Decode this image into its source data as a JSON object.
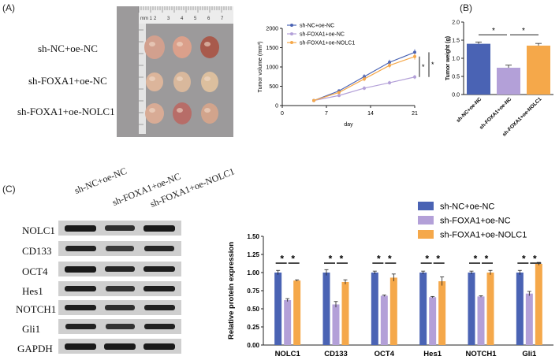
{
  "panels": {
    "a": "(A)",
    "b": "(B)",
    "c": "(C)"
  },
  "photo": {
    "ruler_ticks": [
      "mm 1",
      "2",
      "3",
      "4",
      "5",
      "6",
      "7"
    ],
    "row_labels": [
      "sh-NC+oe-NC",
      "sh-FOXA1+oe-NC",
      "sh-FOXA1+oe-NOLC1"
    ]
  },
  "colors": {
    "nc": "#4a63b4",
    "foxa1": "#b3a0d8",
    "nolc1": "#f5a84a"
  },
  "volume_chart": {
    "chart_data": {
      "type": "line",
      "x": [
        5,
        9,
        13,
        17,
        21
      ],
      "series": [
        {
          "name": "sh-NC+oe-NC",
          "values": [
            130,
            380,
            750,
            1120,
            1380
          ]
        },
        {
          "name": "sh-FOXA1+oe-NC",
          "values": [
            130,
            260,
            450,
            590,
            740
          ]
        },
        {
          "name": "sh-FOXA1+oe-NOLC1",
          "values": [
            130,
            340,
            690,
            1040,
            1270
          ]
        }
      ],
      "errors": [
        [
          20,
          40,
          60,
          70,
          80
        ],
        [
          15,
          30,
          50,
          50,
          55
        ],
        [
          20,
          40,
          60,
          70,
          80
        ]
      ],
      "xlabel": "day",
      "ylabel": "Tumor volume (mm³)",
      "xticks": [
        "0",
        "7",
        "14",
        "21"
      ],
      "yticks": [
        "0",
        "500",
        "1000",
        "1500",
        "2000"
      ],
      "xlim": [
        0,
        21
      ],
      "ylim": [
        0,
        2000
      ],
      "sig": [
        "*",
        "*"
      ]
    }
  },
  "weight_chart": {
    "chart_data": {
      "type": "bar",
      "categories": [
        "sh-NC+oe-NC",
        "sh-FOXA1+oe-NC",
        "sh-FOXA1+oe-NOLC1"
      ],
      "values": [
        1.4,
        0.74,
        1.35
      ],
      "errors": [
        0.05,
        0.07,
        0.06
      ],
      "ylabel": "Tumor weight (g)",
      "yticks": [
        "0.0",
        "0.5",
        "1.0",
        "1.5",
        "2.0"
      ],
      "ylim": [
        0,
        2.0
      ],
      "sig": [
        "*",
        "*"
      ]
    }
  },
  "western": {
    "lanes": [
      "sh-NC+oe-NC",
      "sh-FOXA1+oe-NC",
      "sh-FOXA1+oe-NOLC1"
    ],
    "proteins": [
      "NOLC1",
      "CD133",
      "OCT4",
      "Hes1",
      "NOTCH1",
      "Gli1",
      "GAPDH"
    ]
  },
  "expression_chart": {
    "chart_data": {
      "type": "bar",
      "categories": [
        "NOLC1",
        "CD133",
        "OCT4",
        "Hes1",
        "NOTCH1",
        "Gli1"
      ],
      "series": [
        {
          "name": "sh-NC+oe-NC",
          "values": [
            1.0,
            1.0,
            1.0,
            1.0,
            1.0,
            1.0
          ]
        },
        {
          "name": "sh-FOXA1+oe-NC",
          "values": [
            0.62,
            0.56,
            0.68,
            0.66,
            0.67,
            0.71
          ]
        },
        {
          "name": "sh-FOXA1+oe-NOLC1",
          "values": [
            0.89,
            0.87,
            0.93,
            0.88,
            1.0,
            1.12
          ]
        }
      ],
      "errors": [
        [
          0.03,
          0.04,
          0.02,
          0.02,
          0.02,
          0.03
        ],
        [
          0.02,
          0.04,
          0.01,
          0.01,
          0.01,
          0.03
        ],
        [
          0.01,
          0.03,
          0.05,
          0.06,
          0.03,
          0.02
        ]
      ],
      "ylabel": "Relative protein expression",
      "yticks": [
        "0.00",
        "0.25",
        "0.50",
        "0.75",
        "1.00",
        "1.25",
        "1.50"
      ],
      "ylim": [
        0,
        1.5
      ],
      "legend": [
        "sh-NC+oe-NC",
        "sh-FOXA1+oe-NC",
        "sh-FOXA1+oe-NOLC1"
      ],
      "sig": [
        "*",
        "*"
      ]
    }
  }
}
